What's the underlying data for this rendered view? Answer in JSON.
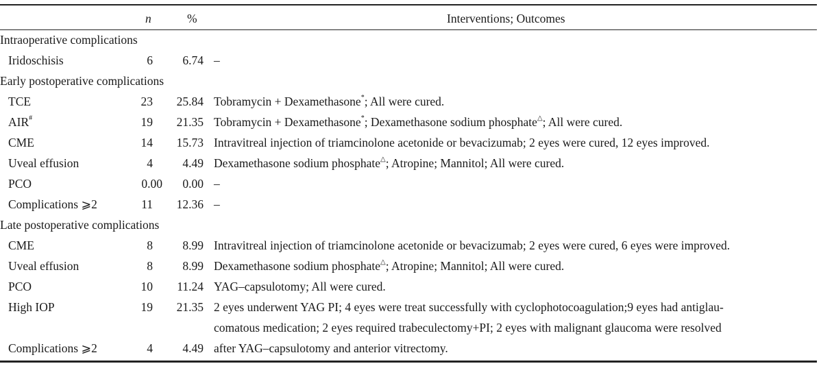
{
  "header": {
    "n": "n",
    "pct": "%",
    "interventions": "Interventions; Outcomes"
  },
  "rows": [
    {
      "type": "section",
      "label": "Intraoperative complications"
    },
    {
      "type": "item",
      "label": "Iridoschisis",
      "n": "6",
      "pct": "6.74",
      "iv": [
        {
          "t": "–"
        }
      ]
    },
    {
      "type": "section",
      "label": "Early postoperative complications"
    },
    {
      "type": "item",
      "label": "TCE",
      "n": "23",
      "pct": "25.84",
      "iv": [
        {
          "t": "Tobramycin + Dexamethasone"
        },
        {
          "sup": "*"
        },
        {
          "t": "; All were cured."
        }
      ]
    },
    {
      "type": "item",
      "label": "AIR",
      "label_sup": "#",
      "n": "19",
      "pct": "21.35",
      "iv": [
        {
          "t": "Tobramycin + Dexamethasone"
        },
        {
          "sup": "*"
        },
        {
          "t": "; Dexamethasone sodium phosphate"
        },
        {
          "sup": "△"
        },
        {
          "t": "; All were cured."
        }
      ]
    },
    {
      "type": "item",
      "label": "CME",
      "n": "14",
      "pct": "15.73",
      "iv": [
        {
          "t": "Intravitreal injection of triamcinolone acetonide or bevacizumab; 2 eyes were cured, 12 eyes improved."
        }
      ]
    },
    {
      "type": "item",
      "label": "Uveal effusion",
      "n": "4",
      "pct": "4.49",
      "iv": [
        {
          "t": "Dexamethasone sodium phosphate"
        },
        {
          "sup": "△"
        },
        {
          "t": "; Atropine; Mannitol; All were cured."
        }
      ]
    },
    {
      "type": "item",
      "label": "PCO",
      "n": "0.00",
      "pct": "0.00",
      "iv": [
        {
          "t": "–"
        }
      ]
    },
    {
      "type": "item",
      "label": "Complications ⩾2",
      "n": "11",
      "pct": "12.36",
      "iv": [
        {
          "t": "–"
        }
      ]
    },
    {
      "type": "section",
      "label": "Late postoperative complications"
    },
    {
      "type": "item",
      "label": "CME",
      "n": "8",
      "pct": "8.99",
      "iv": [
        {
          "t": "Intravitreal injection of triamcinolone acetonide or bevacizumab; 2 eyes were cured, 6 eyes were improved."
        }
      ]
    },
    {
      "type": "item",
      "label": "Uveal effusion",
      "n": "8",
      "pct": "8.99",
      "iv": [
        {
          "t": "Dexamethasone sodium phosphate"
        },
        {
          "sup": "△"
        },
        {
          "t": "; Atropine; Mannitol; All were cured."
        }
      ]
    },
    {
      "type": "item",
      "label": "PCO",
      "n": "10",
      "pct": "11.24",
      "iv": [
        {
          "t": "YAG–capsulotomy; All were cured."
        }
      ]
    },
    {
      "type": "item",
      "label": "High IOP",
      "n": "19",
      "pct": "21.35",
      "iv": [
        {
          "t": "2 eyes underwent YAG PI; 4 eyes were treat successfully with cyclophotocoagulation;9 eyes had antiglau-"
        }
      ]
    },
    {
      "type": "item",
      "label": "",
      "n": "",
      "pct": "",
      "iv": [
        {
          "t": "comatous medication;  2 eyes required trabeculectomy+PI;  2 eyes with malignant glaucoma were resolved"
        }
      ]
    },
    {
      "type": "item",
      "label": "Complications ⩾2",
      "n": "4",
      "pct": "4.49",
      "iv": [
        {
          "t": "after YAG–capsulotomy and anterior vitrectomy."
        }
      ]
    }
  ]
}
